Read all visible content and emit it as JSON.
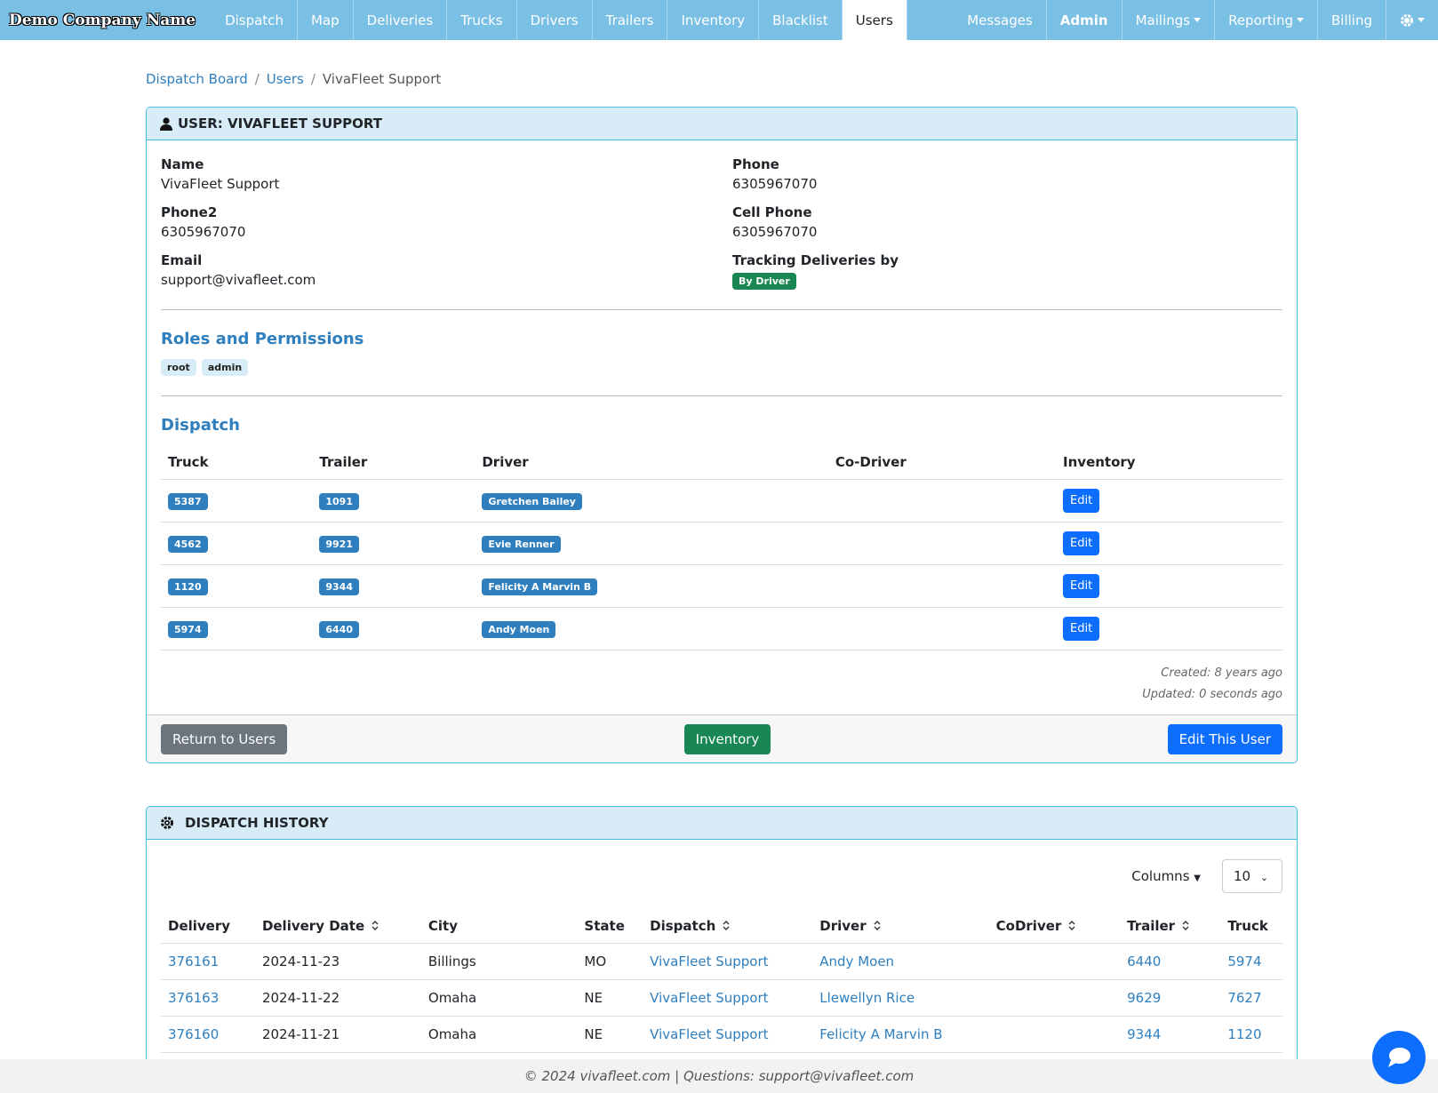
{
  "nav": {
    "brand": "Demo Company Name",
    "left": [
      "Dispatch",
      "Map",
      "Deliveries",
      "Trucks",
      "Drivers",
      "Trailers",
      "Inventory",
      "Blacklist",
      "Users"
    ],
    "active": "Users",
    "right": [
      "Messages",
      "Admin",
      "Mailings",
      "Reporting",
      "Billing"
    ]
  },
  "breadcrumb": [
    "Dispatch Board",
    "Users",
    "VivaFleet Support"
  ],
  "user_card": {
    "title": "USER: VIVAFLEET SUPPORT",
    "fields": [
      {
        "label": "Name",
        "value": "VivaFleet Support"
      },
      {
        "label": "Phone",
        "value": "6305967070"
      },
      {
        "label": "Phone2",
        "value": "6305967070"
      },
      {
        "label": "Cell Phone",
        "value": "6305967070"
      },
      {
        "label": "Email",
        "value": "support@vivafleet.com"
      },
      {
        "label": "Tracking Deliveries by",
        "badge": "By Driver"
      }
    ],
    "roles_heading": "Roles and Permissions",
    "roles": [
      "root",
      "admin"
    ],
    "dispatch_heading": "Dispatch",
    "dispatch_headers": [
      "Truck",
      "Trailer",
      "Driver",
      "Co-Driver",
      "Inventory"
    ],
    "dispatch_rows": [
      {
        "truck": "5387",
        "trailer": "1091",
        "driver": "Gretchen Bailey",
        "inventory": "Edit"
      },
      {
        "truck": "4562",
        "trailer": "9921",
        "driver": "Evie Renner",
        "inventory": "Edit"
      },
      {
        "truck": "1120",
        "trailer": "9344",
        "driver": "Felicity A Marvin B",
        "inventory": "Edit"
      },
      {
        "truck": "5974",
        "trailer": "6440",
        "driver": "Andy Moen",
        "inventory": "Edit"
      }
    ],
    "created": "Created: 8 years ago",
    "updated": "Updated: 0 seconds ago",
    "buttons": {
      "back": "Return to Users",
      "inventory": "Inventory",
      "edit": "Edit This User"
    }
  },
  "history": {
    "title": "DISPATCH HISTORY",
    "columns_label": "Columns",
    "page_size": "10",
    "headers": [
      {
        "text": "Delivery"
      },
      {
        "text": "Delivery Date",
        "sort": true
      },
      {
        "text": "City"
      },
      {
        "text": "State"
      },
      {
        "text": "Dispatch",
        "sort": true
      },
      {
        "text": "Driver",
        "sort": true
      },
      {
        "text": "CoDriver",
        "sort": true
      },
      {
        "text": "Trailer",
        "sort": true
      },
      {
        "text": "Truck"
      }
    ],
    "rows": [
      [
        "376161",
        "2024-11-23",
        "Billings",
        "MO",
        "VivaFleet Support",
        "Andy Moen",
        "",
        "6440",
        "5974"
      ],
      [
        "376163",
        "2024-11-22",
        "Omaha",
        "NE",
        "VivaFleet Support",
        "Llewellyn Rice",
        "",
        "9629",
        "7627"
      ],
      [
        "376160",
        "2024-11-21",
        "Omaha",
        "NE",
        "VivaFleet Support",
        "Felicity A Marvin B",
        "",
        "9344",
        "1120"
      ]
    ]
  },
  "footer": "© 2024 vivafleet.com | Questions: support@vivafleet.com"
}
